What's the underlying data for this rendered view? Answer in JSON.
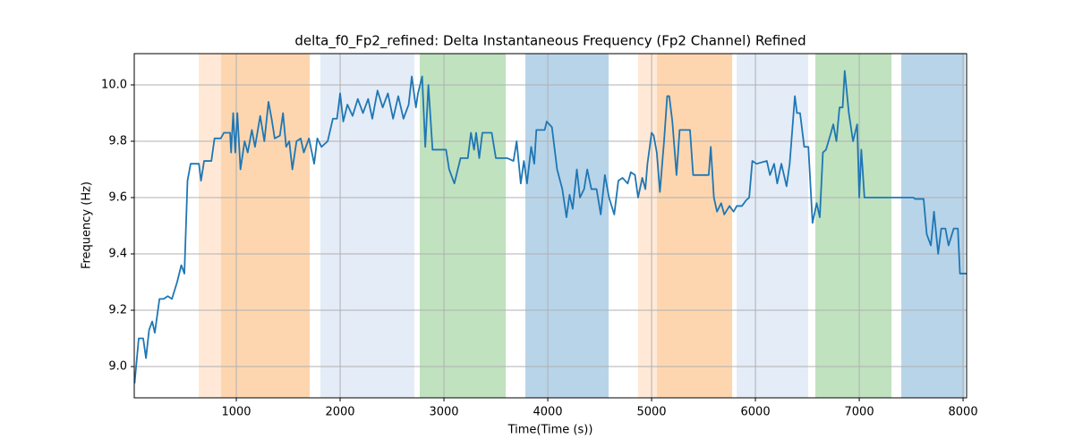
{
  "chart_data": {
    "type": "line",
    "title": "delta_f0_Fp2_refined: Delta Instantaneous Frequency (Fp2 Channel) Refined",
    "x_label": "Time(Time (s))",
    "y_label": "Frequency (Hz)",
    "xlim": [
      17,
      8034
    ],
    "ylim": [
      8.889,
      10.111
    ],
    "xticks": [
      1000,
      2000,
      3000,
      4000,
      5000,
      6000,
      7000,
      8000
    ],
    "yticks": [
      {
        "value": 9,
        "label": "9.0"
      },
      9.2,
      9.4,
      9.6,
      9.8,
      {
        "value": 10,
        "label": "10.0"
      }
    ],
    "grid": true,
    "spans": [
      {
        "start": 638,
        "end": 853,
        "color": "#ffe9d6"
      },
      {
        "start": 853,
        "end": 1707,
        "color": "#fdd6b0"
      },
      {
        "start": 1810,
        "end": 2715,
        "color": "#e4ecf7"
      },
      {
        "start": 2767,
        "end": 3595,
        "color": "#c0e2bf"
      },
      {
        "start": 3784,
        "end": 4586,
        "color": "#b8d4e9"
      },
      {
        "start": 4870,
        "end": 5052,
        "color": "#ffe9d6"
      },
      {
        "start": 5052,
        "end": 5776,
        "color": "#fdd6b0"
      },
      {
        "start": 5819,
        "end": 6508,
        "color": "#e4ecf7"
      },
      {
        "start": 6577,
        "end": 7310,
        "color": "#c0e2bf"
      },
      {
        "start": 7405,
        "end": 8017,
        "color": "#b8d4e9"
      }
    ],
    "x": [
      20,
      60,
      103,
      130,
      160,
      190,
      215,
      260,
      300,
      340,
      380,
      430,
      470,
      500,
      530,
      560,
      640,
      660,
      690,
      760,
      790,
      850,
      880,
      940,
      950,
      970,
      990,
      1010,
      1040,
      1080,
      1110,
      1150,
      1180,
      1230,
      1270,
      1310,
      1340,
      1370,
      1420,
      1450,
      1480,
      1510,
      1540,
      1580,
      1620,
      1650,
      1700,
      1750,
      1780,
      1820,
      1880,
      1930,
      1970,
      2000,
      2030,
      2070,
      2120,
      2170,
      2220,
      2270,
      2310,
      2360,
      2410,
      2460,
      2510,
      2560,
      2610,
      2660,
      2690,
      2730,
      2750,
      2790,
      2820,
      2850,
      2890,
      2950,
      3020,
      3050,
      3100,
      3160,
      3230,
      3260,
      3290,
      3310,
      3340,
      3370,
      3460,
      3500,
      3610,
      3670,
      3700,
      3740,
      3770,
      3800,
      3840,
      3870,
      3890,
      3970,
      3990,
      4040,
      4090,
      4140,
      4180,
      4210,
      4240,
      4280,
      4310,
      4350,
      4380,
      4420,
      4470,
      4510,
      4550,
      4590,
      4640,
      4680,
      4720,
      4770,
      4800,
      4840,
      4870,
      4910,
      4940,
      4960,
      5000,
      5020,
      5050,
      5080,
      5120,
      5150,
      5170,
      5200,
      5240,
      5270,
      5370,
      5400,
      5550,
      5570,
      5600,
      5630,
      5670,
      5700,
      5750,
      5790,
      5820,
      5870,
      5910,
      5940,
      5970,
      6010,
      6110,
      6140,
      6180,
      6210,
      6250,
      6300,
      6330,
      6380,
      6400,
      6430,
      6470,
      6510,
      6550,
      6590,
      6620,
      6650,
      6680,
      6720,
      6750,
      6780,
      6810,
      6840,
      6860,
      6900,
      6940,
      6980,
      7000,
      7020,
      7050,
      7520,
      7540,
      7620,
      7650,
      7690,
      7720,
      7760,
      7790,
      7830,
      7860,
      7910,
      7950,
      7970,
      8034
    ],
    "series": [
      {
        "color": "#1f77b4",
        "values": [
          8.94,
          9.1,
          9.1,
          9.03,
          9.13,
          9.16,
          9.12,
          9.24,
          9.24,
          9.25,
          9.24,
          9.3,
          9.36,
          9.33,
          9.66,
          9.72,
          9.72,
          9.66,
          9.73,
          9.73,
          9.81,
          9.81,
          9.83,
          9.83,
          9.76,
          9.9,
          9.76,
          9.9,
          9.7,
          9.8,
          9.76,
          9.84,
          9.78,
          9.89,
          9.8,
          9.94,
          9.88,
          9.81,
          9.82,
          9.9,
          9.78,
          9.8,
          9.7,
          9.8,
          9.81,
          9.76,
          9.81,
          9.72,
          9.81,
          9.78,
          9.8,
          9.88,
          9.88,
          9.97,
          9.87,
          9.93,
          9.89,
          9.95,
          9.9,
          9.95,
          9.88,
          9.98,
          9.92,
          9.97,
          9.88,
          9.96,
          9.88,
          9.93,
          10.03,
          9.92,
          9.97,
          10.03,
          9.78,
          10.0,
          9.77,
          9.77,
          9.77,
          9.7,
          9.65,
          9.74,
          9.74,
          9.83,
          9.77,
          9.83,
          9.74,
          9.83,
          9.83,
          9.74,
          9.74,
          9.73,
          9.8,
          9.65,
          9.73,
          9.65,
          9.78,
          9.72,
          9.84,
          9.84,
          9.87,
          9.85,
          9.7,
          9.63,
          9.53,
          9.61,
          9.56,
          9.7,
          9.6,
          9.63,
          9.7,
          9.63,
          9.63,
          9.54,
          9.68,
          9.6,
          9.54,
          9.66,
          9.67,
          9.65,
          9.69,
          9.68,
          9.6,
          9.67,
          9.63,
          9.72,
          9.83,
          9.82,
          9.76,
          9.62,
          9.8,
          9.96,
          9.96,
          9.87,
          9.68,
          9.84,
          9.84,
          9.68,
          9.68,
          9.78,
          9.6,
          9.55,
          9.58,
          9.54,
          9.57,
          9.55,
          9.57,
          9.57,
          9.59,
          9.6,
          9.73,
          9.72,
          9.73,
          9.68,
          9.72,
          9.65,
          9.72,
          9.64,
          9.72,
          9.96,
          9.9,
          9.9,
          9.78,
          9.78,
          9.51,
          9.58,
          9.53,
          9.76,
          9.77,
          9.82,
          9.86,
          9.8,
          9.92,
          9.92,
          10.05,
          9.9,
          9.8,
          9.86,
          9.6,
          9.77,
          9.6,
          9.6,
          9.595,
          9.595,
          9.47,
          9.43,
          9.55,
          9.4,
          9.49,
          9.49,
          9.43,
          9.49,
          9.49,
          9.33,
          9.33
        ]
      }
    ]
  }
}
